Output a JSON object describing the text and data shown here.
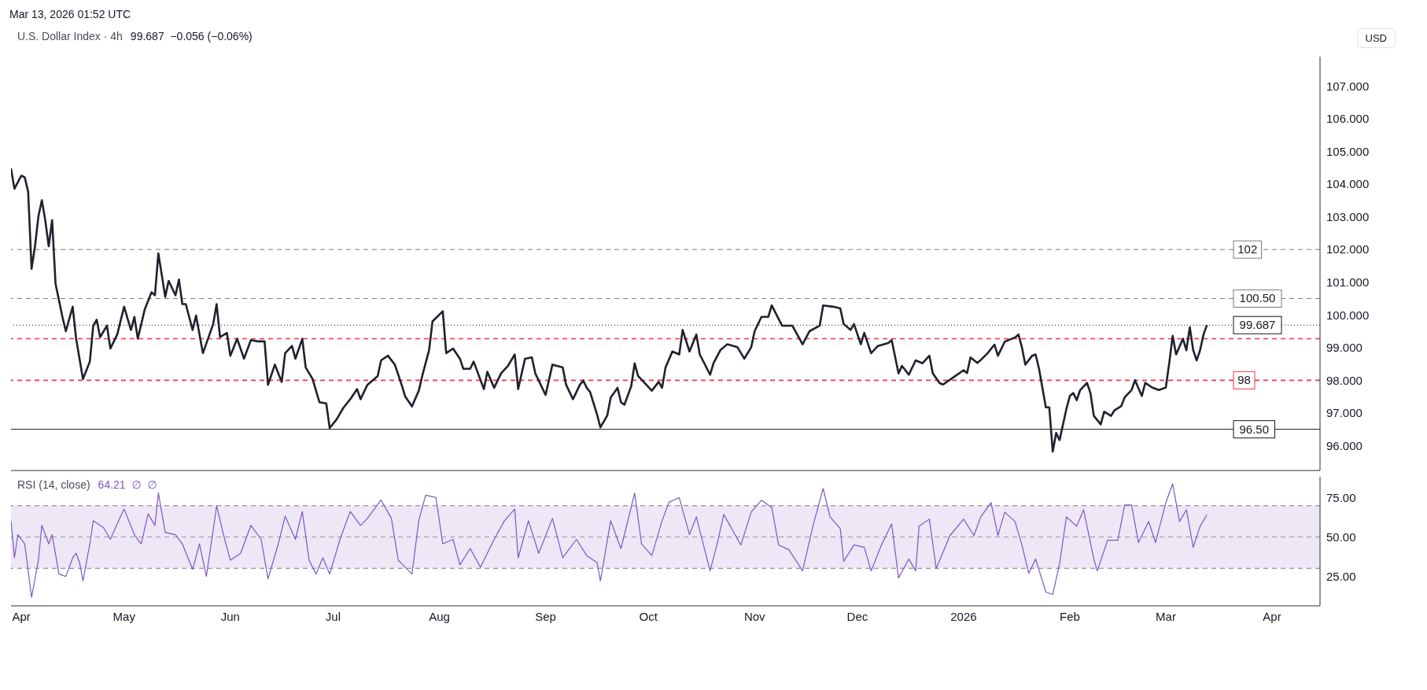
{
  "chart_data": [
    {
      "type": "line",
      "title": "U.S. Dollar Index · 4h",
      "subtitle": "99.687  −0.056 (−0.06%)",
      "ylabel": "USD",
      "annotations": [
        "Mar 13, 2026 01:52 UTC"
      ],
      "tick_labels": "y",
      "marker": "none",
      "xlim": [
        "2025-03-29",
        "2026-04-15"
      ],
      "ylim": [
        95.24,
        107.9
      ],
      "yticks": [
        {
          "value": 96,
          "label": "96.000"
        },
        {
          "value": 97,
          "label": "97.000"
        },
        {
          "value": 98,
          "label": "98.000"
        },
        {
          "value": 99,
          "label": "99.000"
        },
        {
          "value": 100,
          "label": "100.000"
        },
        {
          "value": 101,
          "label": "101.000"
        },
        {
          "value": 102,
          "label": "102.000"
        },
        {
          "value": 103,
          "label": "103.000"
        },
        {
          "value": 104,
          "label": "104.000"
        },
        {
          "value": 105,
          "label": "105.000"
        },
        {
          "value": 106,
          "label": "106.000"
        },
        {
          "value": 107,
          "label": "107.000"
        }
      ],
      "ref_lines": [
        {
          "axis": "y",
          "value": 102,
          "label": "102",
          "color": "#787b86",
          "line_style": "dashed"
        },
        {
          "axis": "y",
          "value": 100.5,
          "label": "100.50",
          "color": "#787b86",
          "line_style": "dashed"
        },
        {
          "axis": "y",
          "value": 99.687,
          "label": "99.687",
          "color": "#131722",
          "line_style": "dotted"
        },
        {
          "axis": "y",
          "value": 99.27,
          "color": "#f23645",
          "line_style": "dashed"
        },
        {
          "axis": "y",
          "value": 98,
          "label": "98",
          "color": "#f23645",
          "line_style": "dashed"
        },
        {
          "axis": "y",
          "value": 96.5,
          "label": "96.50",
          "color": "#131722",
          "line_style": "solid"
        }
      ],
      "series": [
        {
          "color": "#1e222d",
          "x": [
            "2025-03-29",
            "2025-03-30",
            "2025-04-01",
            "2025-04-02",
            "2025-04-03",
            "2025-04-04",
            "2025-04-05",
            "2025-04-06",
            "2025-04-07",
            "2025-04-08",
            "2025-04-09",
            "2025-04-10",
            "2025-04-11",
            "2025-04-13",
            "2025-04-14",
            "2025-04-16",
            "2025-04-17",
            "2025-04-19",
            "2025-04-21",
            "2025-04-22",
            "2025-04-23",
            "2025-04-24",
            "2025-04-26",
            "2025-04-27",
            "2025-04-29",
            "2025-05-01",
            "2025-05-03",
            "2025-05-04",
            "2025-05-05",
            "2025-05-07",
            "2025-05-09",
            "2025-05-10",
            "2025-05-11",
            "2025-05-12",
            "2025-05-13",
            "2025-05-14",
            "2025-05-16",
            "2025-05-17",
            "2025-05-18",
            "2025-05-19",
            "2025-05-21",
            "2025-05-22",
            "2025-05-24",
            "2025-05-27",
            "2025-05-28",
            "2025-05-29",
            "2025-05-31",
            "2025-06-01",
            "2025-06-03",
            "2025-06-05",
            "2025-06-07",
            "2025-06-09",
            "2025-06-11",
            "2025-06-12",
            "2025-06-14",
            "2025-06-16",
            "2025-06-17",
            "2025-06-19",
            "2025-06-20",
            "2025-06-22",
            "2025-06-23",
            "2025-06-25",
            "2025-06-27",
            "2025-06-29",
            "2025-06-30",
            "2025-07-02",
            "2025-07-04",
            "2025-07-06",
            "2025-07-08",
            "2025-07-09",
            "2025-07-11",
            "2025-07-14",
            "2025-07-15",
            "2025-07-17",
            "2025-07-19",
            "2025-07-21",
            "2025-07-22",
            "2025-07-24",
            "2025-07-26",
            "2025-07-27",
            "2025-07-29",
            "2025-07-30",
            "2025-08-02",
            "2025-08-03",
            "2025-08-05",
            "2025-08-07",
            "2025-08-08",
            "2025-08-10",
            "2025-08-11",
            "2025-08-14",
            "2025-08-15",
            "2025-08-17",
            "2025-08-19",
            "2025-08-21",
            "2025-08-23",
            "2025-08-24",
            "2025-08-26",
            "2025-08-28",
            "2025-08-29",
            "2025-09-01",
            "2025-09-03",
            "2025-09-06",
            "2025-09-07",
            "2025-09-09",
            "2025-09-11",
            "2025-09-12",
            "2025-09-13",
            "2025-09-14",
            "2025-09-16",
            "2025-09-17",
            "2025-09-19",
            "2025-09-20",
            "2025-09-22",
            "2025-09-23",
            "2025-09-24",
            "2025-09-26",
            "2025-09-27",
            "2025-09-28",
            "2025-09-30",
            "2025-10-02",
            "2025-10-04",
            "2025-10-05",
            "2025-10-06",
            "2025-10-08",
            "2025-10-10",
            "2025-10-11",
            "2025-10-13",
            "2025-10-15",
            "2025-10-16",
            "2025-10-19",
            "2025-10-20",
            "2025-10-22",
            "2025-10-24",
            "2025-10-27",
            "2025-10-29",
            "2025-10-31",
            "2025-11-01",
            "2025-11-03",
            "2025-11-05",
            "2025-11-06",
            "2025-11-09",
            "2025-11-12",
            "2025-11-15",
            "2025-11-17",
            "2025-11-20",
            "2025-11-21",
            "2025-11-24",
            "2025-11-26",
            "2025-11-27",
            "2025-11-29",
            "2025-11-30",
            "2025-12-02",
            "2025-12-03",
            "2025-12-05",
            "2025-12-07",
            "2025-12-10",
            "2025-12-11",
            "2025-12-13",
            "2025-12-14",
            "2025-12-16",
            "2025-12-18",
            "2025-12-20",
            "2025-12-22",
            "2025-12-23",
            "2025-12-25",
            "2025-12-26",
            "2025-12-29",
            "2026-01-01",
            "2026-01-02",
            "2026-01-03",
            "2026-01-05",
            "2026-01-06",
            "2026-01-08",
            "2026-01-10",
            "2026-01-11",
            "2026-01-13",
            "2026-01-16",
            "2026-01-17",
            "2026-01-18",
            "2026-01-19",
            "2026-01-21",
            "2026-01-22",
            "2026-01-23",
            "2026-01-25",
            "2026-01-26",
            "2026-01-27",
            "2026-01-28",
            "2026-01-29",
            "2026-01-31",
            "2026-02-01",
            "2026-02-02",
            "2026-02-03",
            "2026-02-04",
            "2026-02-06",
            "2026-02-07",
            "2026-02-08",
            "2026-02-10",
            "2026-02-11",
            "2026-02-13",
            "2026-02-14",
            "2026-02-16",
            "2026-02-17",
            "2026-02-19",
            "2026-02-20",
            "2026-02-22",
            "2026-02-23",
            "2026-02-25",
            "2026-02-27",
            "2026-03-01",
            "2026-03-02",
            "2026-03-03",
            "2026-03-04",
            "2026-03-06",
            "2026-03-07",
            "2026-03-08",
            "2026-03-09",
            "2026-03-10",
            "2026-03-11",
            "2026-03-12",
            "2026-03-13"
          ],
          "values": [
            104.48,
            103.86,
            104.26,
            104.21,
            103.77,
            101.41,
            102.1,
            103.02,
            103.51,
            102.89,
            102.1,
            102.9,
            100.95,
            99.94,
            99.5,
            100.25,
            99.27,
            98.04,
            98.57,
            99.67,
            99.85,
            99.32,
            99.67,
            98.97,
            99.4,
            100.25,
            99.54,
            99.94,
            99.27,
            100.16,
            100.69,
            100.6,
            101.88,
            101.22,
            100.55,
            101.04,
            100.6,
            101.08,
            100.33,
            100.33,
            99.54,
            99.98,
            98.83,
            99.72,
            100.33,
            99.32,
            99.45,
            98.75,
            99.27,
            98.66,
            99.23,
            99.19,
            99.19,
            97.86,
            98.48,
            97.95,
            98.83,
            99.05,
            98.66,
            99.27,
            98.39,
            98.04,
            97.33,
            97.29,
            96.54,
            96.8,
            97.16,
            97.42,
            97.73,
            97.42,
            97.86,
            98.13,
            98.61,
            98.75,
            98.48,
            97.86,
            97.51,
            97.2,
            97.68,
            98.13,
            98.92,
            99.8,
            100.11,
            98.83,
            98.97,
            98.66,
            98.35,
            98.35,
            98.57,
            97.73,
            98.26,
            97.77,
            98.21,
            98.44,
            98.79,
            97.73,
            98.66,
            98.7,
            98.21,
            97.55,
            98.48,
            98.39,
            97.86,
            97.42,
            97.86,
            97.99,
            97.77,
            97.64,
            96.96,
            96.56,
            96.92,
            97.47,
            97.77,
            97.33,
            97.25,
            97.82,
            98.52,
            98.13,
            97.91,
            97.68,
            97.95,
            97.77,
            98.39,
            98.88,
            98.79,
            99.54,
            98.88,
            99.4,
            98.79,
            98.17,
            98.52,
            98.92,
            99.1,
            99.01,
            98.66,
            99.01,
            99.5,
            99.94,
            99.94,
            100.29,
            99.67,
            99.67,
            99.1,
            99.5,
            99.67,
            100.29,
            100.25,
            100.2,
            99.72,
            99.54,
            99.72,
            99.1,
            99.45,
            98.83,
            99.05,
            99.14,
            99.23,
            98.21,
            98.44,
            98.17,
            98.61,
            98.52,
            98.75,
            98.21,
            97.91,
            97.87,
            98.09,
            98.31,
            98.22,
            98.7,
            98.53,
            98.62,
            98.83,
            99.09,
            98.75,
            99.18,
            99.31,
            99.4,
            99.01,
            98.48,
            98.75,
            98.79,
            98.35,
            97.17,
            97.17,
            95.82,
            96.39,
            96.17,
            97.13,
            97.52,
            97.61,
            97.39,
            97.7,
            97.92,
            97.61,
            96.91,
            96.65,
            97.04,
            96.91,
            97.08,
            97.21,
            97.48,
            97.7,
            98.0,
            97.52,
            97.92,
            97.78,
            97.7,
            97.78,
            98.53,
            99.36,
            98.79,
            99.27,
            98.92,
            99.62,
            98.92,
            98.61,
            98.92,
            99.4,
            99.69
          ]
        }
      ]
    },
    {
      "type": "line",
      "title": "RSI (14, close)",
      "subtitle": "64.21  ∅  ∅",
      "marker": "none",
      "xlim": [
        "2025-03-29",
        "2026-04-15"
      ],
      "xticks": [
        {
          "value": "2025-04-01",
          "label": "Apr"
        },
        {
          "value": "2025-05-01",
          "label": "May"
        },
        {
          "value": "2025-06-01",
          "label": "Jun"
        },
        {
          "value": "2025-07-01",
          "label": "Jul"
        },
        {
          "value": "2025-08-01",
          "label": "Aug"
        },
        {
          "value": "2025-09-01",
          "label": "Sep"
        },
        {
          "value": "2025-10-01",
          "label": "Oct"
        },
        {
          "value": "2025-11-01",
          "label": "Nov"
        },
        {
          "value": "2025-12-01",
          "label": "Dec"
        },
        {
          "value": "2026-01-01",
          "label": "2026"
        },
        {
          "value": "2026-02-01",
          "label": "Feb"
        },
        {
          "value": "2026-03-01",
          "label": "Mar"
        },
        {
          "value": "2026-04-01",
          "label": "Apr"
        }
      ],
      "ylim": [
        6,
        88.5
      ],
      "yticks": [
        {
          "value": 25,
          "label": "25.00"
        },
        {
          "value": 50,
          "label": "50.00"
        },
        {
          "value": 75,
          "label": "75.00"
        }
      ],
      "bands": [
        {
          "axis": "y",
          "from": 30,
          "to": 70,
          "color": "#ede7f6"
        }
      ],
      "ref_lines": [
        {
          "axis": "y",
          "value": 70,
          "color": "#787b86",
          "line_style": "dashed"
        },
        {
          "axis": "y",
          "value": 50,
          "color": "#9598a1",
          "line_style": "dashed"
        },
        {
          "axis": "y",
          "value": 30,
          "color": "#787b86",
          "line_style": "dashed"
        }
      ],
      "series": [
        {
          "color": "#7e57c2",
          "x": [
            "2025-03-29",
            "2025-03-30",
            "2025-03-31",
            "2025-04-02",
            "2025-04-04",
            "2025-04-06",
            "2025-04-07",
            "2025-04-09",
            "2025-04-10",
            "2025-04-12",
            "2025-04-14",
            "2025-04-16",
            "2025-04-17",
            "2025-04-18",
            "2025-04-19",
            "2025-04-21",
            "2025-04-22",
            "2025-04-25",
            "2025-04-27",
            "2025-04-30",
            "2025-05-01",
            "2025-05-04",
            "2025-05-06",
            "2025-05-08",
            "2025-05-10",
            "2025-05-11",
            "2025-05-13",
            "2025-05-16",
            "2025-05-18",
            "2025-05-21",
            "2025-05-23",
            "2025-05-25",
            "2025-05-27",
            "2025-05-28",
            "2025-05-30",
            "2025-06-01",
            "2025-06-04",
            "2025-06-07",
            "2025-06-10",
            "2025-06-12",
            "2025-06-15",
            "2025-06-17",
            "2025-06-20",
            "2025-06-22",
            "2025-06-24",
            "2025-06-26",
            "2025-06-28",
            "2025-06-30",
            "2025-07-03",
            "2025-07-06",
            "2025-07-09",
            "2025-07-11",
            "2025-07-15",
            "2025-07-18",
            "2025-07-20",
            "2025-07-24",
            "2025-07-26",
            "2025-07-28",
            "2025-07-31",
            "2025-08-02",
            "2025-08-05",
            "2025-08-07",
            "2025-08-10",
            "2025-08-13",
            "2025-08-17",
            "2025-08-20",
            "2025-08-23",
            "2025-08-24",
            "2025-08-27",
            "2025-08-30",
            "2025-09-03",
            "2025-09-06",
            "2025-09-10",
            "2025-09-13",
            "2025-09-16",
            "2025-09-17",
            "2025-09-20",
            "2025-09-23",
            "2025-09-27",
            "2025-09-29",
            "2025-10-02",
            "2025-10-05",
            "2025-10-07",
            "2025-10-10",
            "2025-10-13",
            "2025-10-15",
            "2025-10-19",
            "2025-10-21",
            "2025-10-23",
            "2025-10-28",
            "2025-10-31",
            "2025-11-03",
            "2025-11-06",
            "2025-11-08",
            "2025-11-11",
            "2025-11-15",
            "2025-11-18",
            "2025-11-21",
            "2025-11-23",
            "2025-11-26",
            "2025-11-27",
            "2025-11-30",
            "2025-12-03",
            "2025-12-05",
            "2025-12-08",
            "2025-12-11",
            "2025-12-13",
            "2025-12-16",
            "2025-12-18",
            "2025-12-19",
            "2025-12-22",
            "2025-12-24",
            "2025-12-28",
            "2026-01-01",
            "2026-01-04",
            "2026-01-06",
            "2026-01-09",
            "2026-01-11",
            "2026-01-13",
            "2026-01-16",
            "2026-01-18",
            "2026-01-20",
            "2026-01-22",
            "2026-01-25",
            "2026-01-27",
            "2026-01-29",
            "2026-01-31",
            "2026-02-03",
            "2026-02-05",
            "2026-02-08",
            "2026-02-09",
            "2026-02-12",
            "2026-02-15",
            "2026-02-17",
            "2026-02-19",
            "2026-02-21",
            "2026-02-24",
            "2026-02-26",
            "2026-03-01",
            "2026-03-03",
            "2026-03-05",
            "2026-03-07",
            "2026-03-09",
            "2026-03-11",
            "2026-03-13"
          ],
          "values": [
            60.4,
            36.7,
            51.5,
            45.6,
            11.5,
            35.2,
            57.4,
            45.6,
            51.5,
            26.3,
            24.8,
            36.7,
            39.6,
            33.7,
            21.9,
            45.6,
            60.4,
            55.9,
            48.5,
            63.3,
            67.8,
            51.5,
            45.6,
            64.8,
            57.4,
            78.1,
            53,
            51.5,
            45.6,
            29.3,
            45.6,
            24.8,
            54.4,
            69.9,
            51.5,
            35.2,
            39.6,
            57.4,
            48.5,
            23.3,
            45.6,
            63.3,
            48.5,
            66.3,
            35.2,
            26.3,
            36.7,
            26.3,
            48.5,
            66.3,
            57.4,
            61.9,
            73.7,
            61.9,
            35.2,
            26.3,
            60.4,
            76.7,
            75.2,
            45.6,
            48.5,
            32.2,
            42.6,
            30.7,
            48.5,
            60.4,
            67.8,
            36.7,
            60.4,
            39.6,
            61.9,
            36.7,
            48.5,
            38.1,
            33.7,
            21.9,
            60.4,
            42.6,
            78.1,
            45.6,
            38.1,
            60.4,
            72.2,
            75.2,
            51.5,
            62.9,
            28.3,
            44.9,
            64.4,
            44.9,
            65.9,
            73.5,
            68.9,
            44.9,
            41.9,
            28.3,
            56.9,
            81,
            62.9,
            55.4,
            34.4,
            44.9,
            43.4,
            28.3,
            44.9,
            58.4,
            23.8,
            35.9,
            28.3,
            56.9,
            61.4,
            29.8,
            50.9,
            61.4,
            50.9,
            62.9,
            72,
            50.9,
            65.9,
            59.9,
            44.9,
            26.8,
            35.9,
            14.8,
            13.3,
            32.9,
            62.9,
            56.9,
            67.4,
            35.9,
            28.3,
            47.9,
            47.9,
            70.5,
            70.5,
            46.4,
            59.9,
            46.4,
            72,
            84,
            59.9,
            67.4,
            43.4,
            56.9,
            64.2
          ]
        }
      ]
    }
  ]
}
